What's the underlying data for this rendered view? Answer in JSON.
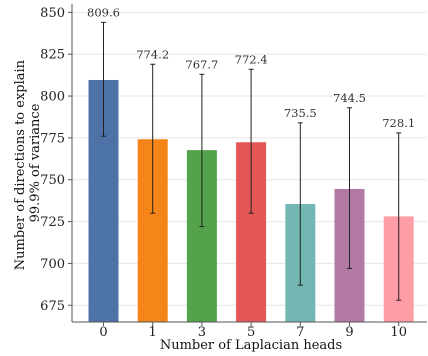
{
  "chart_data": {
    "type": "bar",
    "title": "",
    "xlabel": "Number of Laplacian heads",
    "ylabel_lines": [
      "Number of directions to explain",
      "99.9% of variance"
    ],
    "categories": [
      "0",
      "1",
      "3",
      "5",
      "7",
      "9",
      "10"
    ],
    "values": [
      809.6,
      774.2,
      767.7,
      772.4,
      735.5,
      744.5,
      728.1
    ],
    "value_labels": [
      "809.6",
      "774.2",
      "767.7",
      "772.4",
      "735.5",
      "744.5",
      "728.1"
    ],
    "error_low": [
      776,
      730,
      722,
      730,
      687,
      697,
      678
    ],
    "error_high": [
      844,
      819,
      813,
      816,
      784,
      793,
      778
    ],
    "colors": [
      "#4c72a8",
      "#f58518",
      "#54a24b",
      "#e45756",
      "#72b7b2",
      "#b279a2",
      "#ff9da6"
    ],
    "ylim": [
      665,
      855
    ],
    "yticks": [
      "675",
      "700",
      "725",
      "750",
      "775",
      "800",
      "825",
      "850"
    ],
    "grid": true
  }
}
